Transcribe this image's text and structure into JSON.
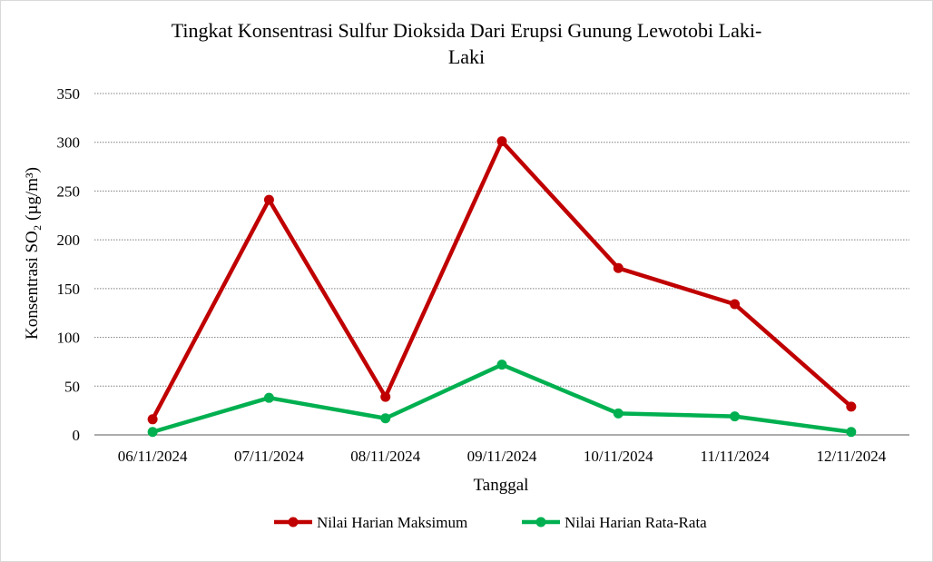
{
  "chart_data": {
    "type": "line",
    "title_line1": "Tingkat Konsentrasi Sulfur Dioksida Dari Erupsi Gunung Lewotobi Laki-",
    "title_line2": "Laki",
    "xlabel": "Tanggal",
    "ylabel": "Konsentrasi SO₂ (µg/m³)",
    "categories": [
      "06/11/2024",
      "07/11/2024",
      "08/11/2024",
      "09/11/2024",
      "10/11/2024",
      "11/11/2024",
      "12/11/2024"
    ],
    "ylim": [
      0,
      350
    ],
    "yticks": [
      0,
      50,
      100,
      150,
      200,
      250,
      300,
      350
    ],
    "grid": true,
    "legend_position": "bottom",
    "series": [
      {
        "name": "Nilai Harian Maksimum",
        "color": "#c00000",
        "values": [
          16,
          241,
          39,
          301,
          171,
          134,
          29
        ]
      },
      {
        "name": "Nilai Harian Rata-Rata",
        "color": "#00b050",
        "values": [
          3,
          38,
          17,
          72,
          22,
          19,
          3
        ]
      }
    ]
  }
}
